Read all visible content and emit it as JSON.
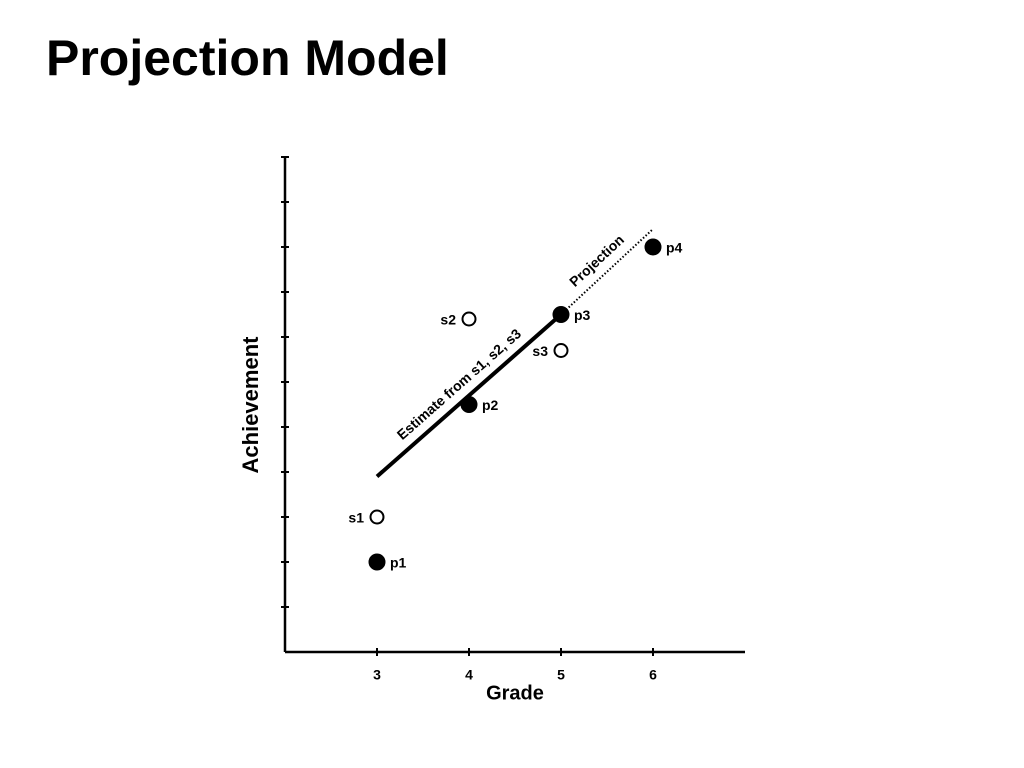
{
  "title": "Projection Model",
  "chart_data": {
    "type": "scatter",
    "x_label": "Grade",
    "y_label": "Achievement",
    "xlim": [
      2,
      7
    ],
    "xticks": [
      3,
      4,
      5,
      6
    ],
    "ylim": [
      0,
      11
    ],
    "yticks": [
      1,
      2,
      3,
      4,
      5,
      6,
      7,
      8,
      9,
      10,
      11
    ],
    "points": [
      {
        "label": "p1",
        "x": 3,
        "y": 2,
        "filled": true
      },
      {
        "label": "s1",
        "x": 3,
        "y": 3,
        "filled": false
      },
      {
        "label": "p2",
        "x": 4,
        "y": 5.5,
        "filled": true
      },
      {
        "label": "s2",
        "x": 4,
        "y": 7.4,
        "filled": false
      },
      {
        "label": "p3",
        "x": 5,
        "y": 7.5,
        "filled": true
      },
      {
        "label": "s3",
        "x": 5,
        "y": 6.7,
        "filled": false
      },
      {
        "label": "p4",
        "x": 6,
        "y": 9,
        "filled": true
      }
    ],
    "lines": [
      {
        "name": "Estimate from s1, s2, s3",
        "x": [
          3,
          5
        ],
        "y": [
          3.9,
          7.5
        ],
        "style": "solid"
      },
      {
        "name": "Projection",
        "x": [
          5,
          6
        ],
        "y": [
          7.5,
          9.4
        ],
        "style": "dotted"
      }
    ]
  }
}
